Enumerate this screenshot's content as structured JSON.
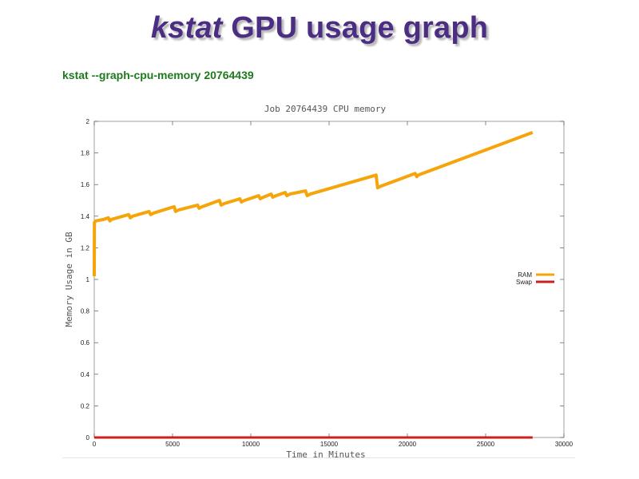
{
  "slide": {
    "title_em": "kstat",
    "title_rest": " GPU usage graph",
    "command": "kstat --graph-cpu-memory 20764439",
    "title_color": "#4b2e83",
    "command_color": "#1d7a1d"
  },
  "chart_data": {
    "type": "line",
    "title": "Job 20764439 CPU memory",
    "xlabel": "Time in Minutes",
    "ylabel": "Memory Usage in GB",
    "xlim": [
      0,
      30000
    ],
    "ylim": [
      0,
      2
    ],
    "x_ticks": [
      0,
      5000,
      10000,
      15000,
      20000,
      25000,
      30000
    ],
    "x_tick_labels": [
      "0",
      "5000",
      "10000",
      "15000",
      "20000",
      "25000",
      "30000"
    ],
    "y_ticks": [
      0,
      0.2,
      0.4,
      0.6,
      0.8,
      1,
      1.2,
      1.4,
      1.6,
      1.8,
      2
    ],
    "y_tick_labels": [
      "0",
      "0.2",
      "0.4",
      "0.6",
      "0.8",
      "1",
      "1.2",
      "1.4",
      "1.6",
      "1.8",
      "2"
    ],
    "grid": false,
    "legend_position": "right",
    "series": [
      {
        "name": "RAM",
        "color": "#f5a50a",
        "x": [
          0,
          10,
          100,
          600,
          900,
          1000,
          1100,
          2200,
          2300,
          2450,
          3500,
          3600,
          3800,
          5100,
          5200,
          5400,
          6600,
          6700,
          6900,
          8000,
          8100,
          8300,
          9300,
          9400,
          9600,
          10500,
          10600,
          10800,
          11300,
          11400,
          11600,
          12200,
          12300,
          12500,
          13500,
          13600,
          13800,
          18000,
          18100,
          18300,
          20500,
          20600,
          20700,
          28000
        ],
        "y": [
          1.02,
          1.36,
          1.37,
          1.38,
          1.39,
          1.37,
          1.38,
          1.41,
          1.39,
          1.4,
          1.43,
          1.41,
          1.42,
          1.46,
          1.43,
          1.44,
          1.47,
          1.45,
          1.46,
          1.5,
          1.47,
          1.48,
          1.51,
          1.49,
          1.5,
          1.53,
          1.51,
          1.52,
          1.54,
          1.52,
          1.53,
          1.55,
          1.53,
          1.54,
          1.56,
          1.53,
          1.54,
          1.66,
          1.58,
          1.59,
          1.67,
          1.65,
          1.66,
          1.93
        ]
      },
      {
        "name": "Swap",
        "color": "#cc1f1f",
        "x": [
          0,
          28000
        ],
        "y": [
          0,
          0
        ]
      }
    ]
  }
}
